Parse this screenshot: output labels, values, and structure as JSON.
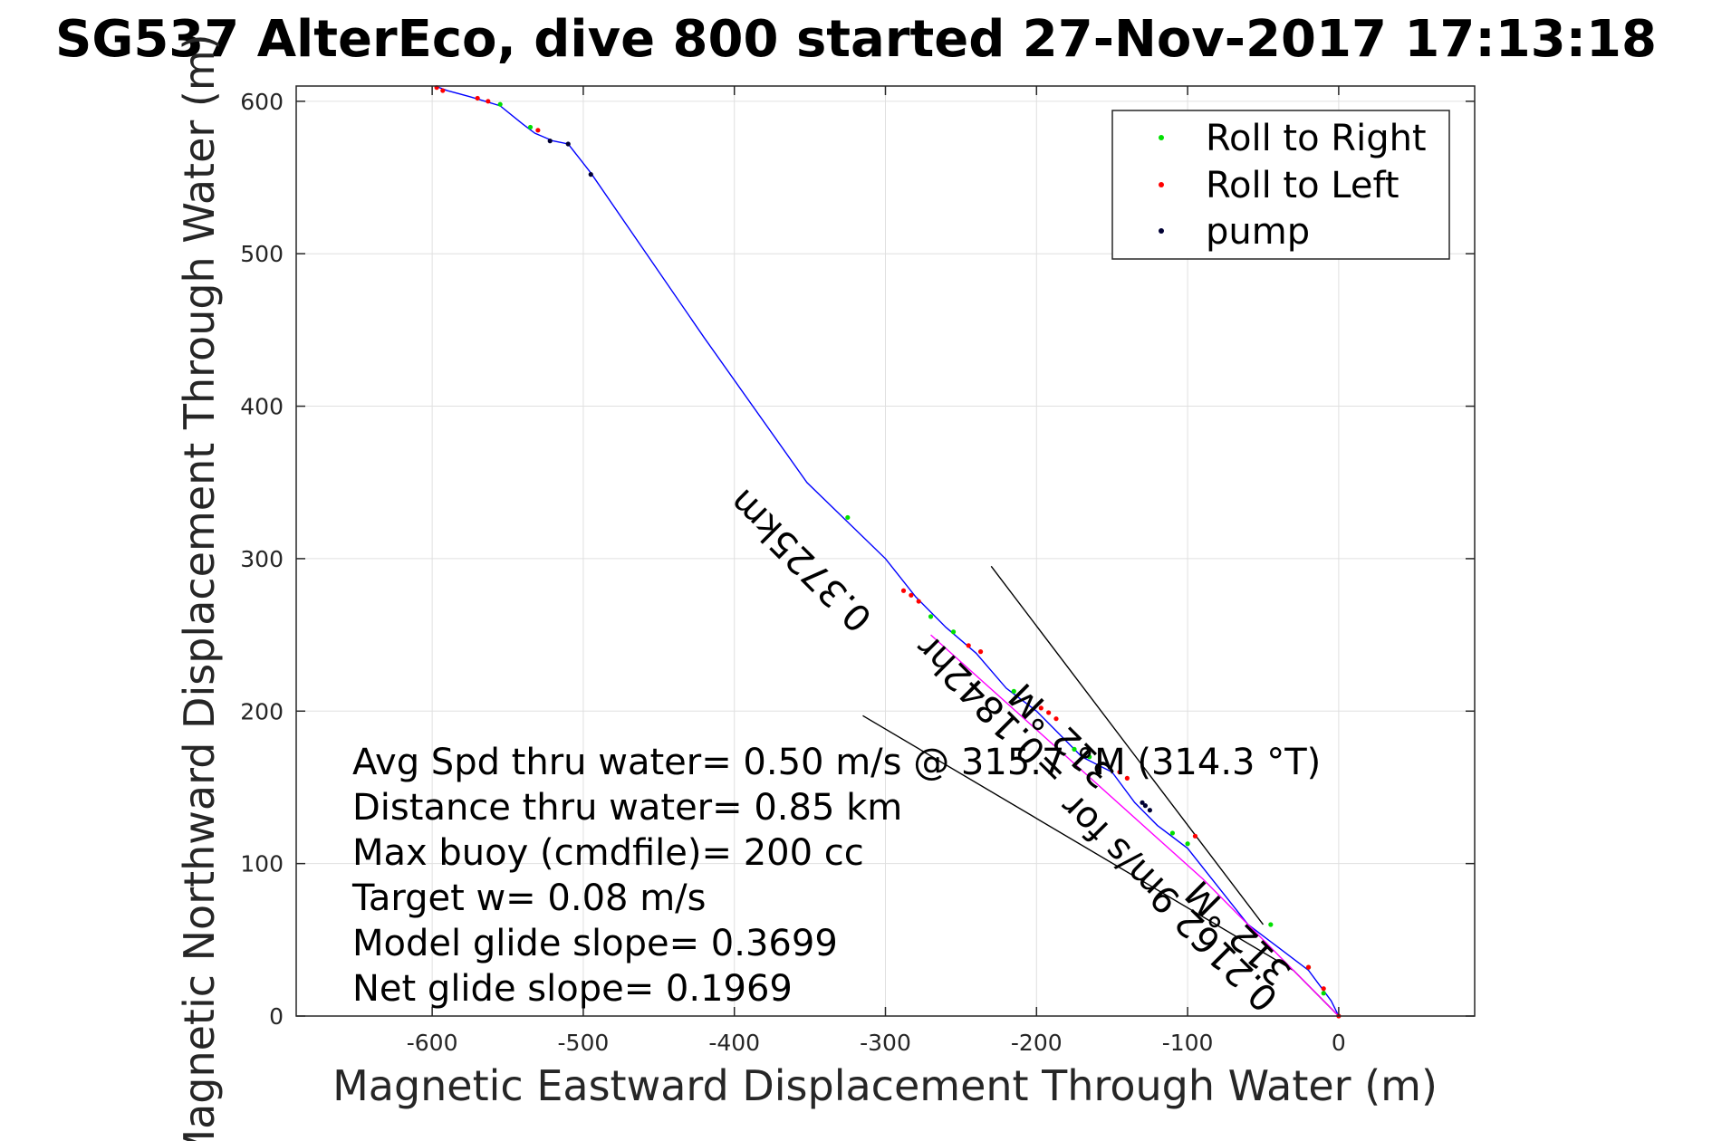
{
  "chart_data": {
    "type": "scatter",
    "title": "SG537 AlterEco, dive 800 started 27-Nov-2017 17:13:18",
    "xlabel": "Magnetic Eastward Displacement Through Water (m)",
    "ylabel": "Magnetic Northward Displacement Through Water (m)",
    "xlim": [
      -690,
      90
    ],
    "ylim": [
      0,
      610
    ],
    "xticks": [
      -600,
      -500,
      -400,
      -300,
      -200,
      -100,
      0
    ],
    "yticks": [
      0,
      100,
      200,
      300,
      400,
      500,
      600
    ],
    "xtick_labels": [
      "-600",
      "-500",
      "-400",
      "-300",
      "-200",
      "-100",
      "0"
    ],
    "ytick_labels": [
      "0",
      "100",
      "200",
      "300",
      "400",
      "500",
      "600"
    ],
    "grid": true,
    "legend_position": "top-right",
    "legend": [
      "Roll to Right",
      "Roll to Left",
      "pump"
    ],
    "colors": {
      "track": "#0000ff",
      "roll_right": "#00e000",
      "roll_left": "#ff0000",
      "pump": "#000033",
      "current": "#ff00ff",
      "lines": "#000000",
      "grid": "#e0e0e0",
      "axes": "#262626"
    },
    "series": [
      {
        "name": "track",
        "kind": "line",
        "x": [
          -598,
          -590,
          -575,
          -565,
          -555,
          -540,
          -532,
          -520,
          -510,
          -495,
          -420,
          -352,
          -300,
          -280,
          -260,
          -240,
          -220,
          -200,
          -185,
          -170,
          -150,
          -135,
          -120,
          -100,
          -80,
          -60,
          -40,
          -20,
          -5,
          0
        ],
        "y": [
          610,
          607,
          603,
          600,
          597,
          585,
          579,
          574,
          572,
          553,
          445,
          350,
          300,
          275,
          255,
          238,
          215,
          200,
          185,
          170,
          160,
          140,
          125,
          110,
          85,
          60,
          45,
          30,
          10,
          0
        ]
      },
      {
        "name": "Roll to Right",
        "kind": "points",
        "x": [
          -555,
          -535,
          -325,
          -270,
          -255,
          -215,
          -175,
          -165,
          -110,
          -100,
          -45,
          -20,
          -10
        ],
        "y": [
          598,
          583,
          327,
          262,
          252,
          213,
          175,
          170,
          120,
          113,
          60,
          32,
          15
        ]
      },
      {
        "name": "Roll to Left",
        "kind": "points",
        "x": [
          -597,
          -593,
          -570,
          -563,
          -530,
          -288,
          -283,
          -278,
          -245,
          -237,
          -197,
          -192,
          -187,
          -145,
          -140,
          -95,
          -20,
          -10,
          0
        ],
        "y": [
          609,
          607,
          602,
          600,
          581,
          279,
          276,
          272,
          243,
          239,
          202,
          199,
          195,
          160,
          156,
          118,
          32,
          18,
          0
        ]
      },
      {
        "name": "pump",
        "kind": "points",
        "x": [
          -522,
          -510,
          -495,
          -130,
          -128,
          -125
        ],
        "y": [
          574,
          572,
          552,
          140,
          138,
          135
        ]
      },
      {
        "name": "current",
        "kind": "line",
        "x": [
          -270,
          -180,
          -90,
          -30,
          0
        ],
        "y": [
          250,
          170,
          90,
          30,
          0
        ]
      }
    ],
    "reference_lines": [
      {
        "x": [
          -230,
          -50
        ],
        "y": [
          295,
          60
        ]
      },
      {
        "x": [
          -315,
          -30
        ],
        "y": [
          197,
          30
        ]
      },
      {
        "x": [
          -30,
          0
        ],
        "y": [
          30,
          0
        ]
      }
    ],
    "rotated_labels": [
      "0.3725km",
      "=0.1842hr",
      "312 °M",
      "0.2162 9m/s for",
      "312 °M"
    ],
    "annotations": [
      "Avg Spd thru water=  0.50 m/s @ 315.7 °M (314.3 °T)",
      "Distance thru water=  0.85 km",
      "Max buoy (cmdfile)= 200 cc",
      "Target w= 0.08 m/s",
      "Model glide slope= 0.3699",
      "Net glide slope= 0.1969"
    ]
  }
}
